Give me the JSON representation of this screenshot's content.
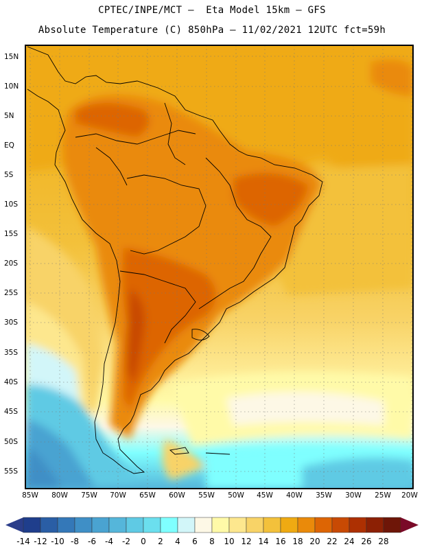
{
  "header": {
    "title_line1": "CPTEC/INPE/MCT –  Eta Model 15km – GFS",
    "title_line2": "Absolute Temperature (C) 850hPa – 11/02/2021 12UTC fct=59h"
  },
  "map": {
    "lat_labels": [
      "15N",
      "10N",
      "5N",
      "EQ",
      "5S",
      "10S",
      "15S",
      "20S",
      "25S",
      "30S",
      "35S",
      "40S",
      "45S",
      "50S",
      "55S"
    ],
    "lon_labels": [
      "85W",
      "80W",
      "75W",
      "70W",
      "65W",
      "60W",
      "55W",
      "50W",
      "45W",
      "40W",
      "35W",
      "30W",
      "25W",
      "20W"
    ]
  },
  "colorbar": {
    "labels": [
      "-14",
      "-12",
      "-10",
      "-8",
      "-6",
      "-4",
      "-2",
      "0",
      "2",
      "4",
      "6",
      "8",
      "10",
      "12",
      "14",
      "16",
      "18",
      "20",
      "22",
      "24",
      "26",
      "28"
    ],
    "colors": [
      "#1f3e8c",
      "#2a5ea5",
      "#3478b8",
      "#3f8fc6",
      "#4aa3d1",
      "#55b6da",
      "#5fcae4",
      "#6bdfee",
      "#7fffff",
      "#d2f6f9",
      "#fdf8e6",
      "#fffaa8",
      "#fde78e",
      "#f8d367",
      "#f3c13b",
      "#efaa12",
      "#ea8a0a",
      "#dd6504",
      "#c84a04",
      "#ad3002",
      "#8c2004",
      "#6e1608"
    ],
    "low_arrow_color": "#2a3d8a",
    "high_arrow_color": "#7a0a28"
  }
}
